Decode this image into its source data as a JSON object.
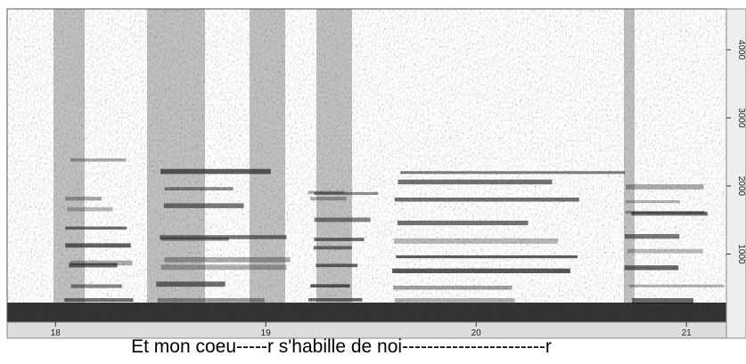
{
  "chart_data": {
    "type": "spectrogram",
    "caption": "Et mon coeu-----r s'habille de noi-----------------------r",
    "xlim": [
      17.77,
      21.19
    ],
    "xticks": [
      18,
      19,
      20,
      21
    ],
    "y2lim": [
      0,
      4600
    ],
    "y2ticks": [
      1000,
      2000,
      3000,
      4000
    ]
  }
}
